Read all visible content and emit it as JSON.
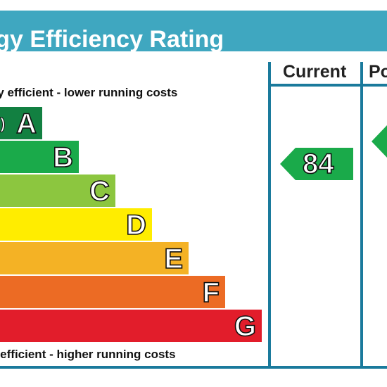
{
  "title": "rgy Efficiency Rating",
  "columns": {
    "current": "Current",
    "potential": "Po"
  },
  "captions": {
    "top": "gy efficient - lower running costs",
    "bottom": "y efficient - higher running costs"
  },
  "bands": [
    {
      "letter": "A",
      "range": "s)",
      "color": "#128041"
    },
    {
      "letter": "B",
      "color": "#1aaa4a"
    },
    {
      "letter": "C",
      "color": "#8cc63f"
    },
    {
      "letter": "D",
      "color": "#ffed00"
    },
    {
      "letter": "E",
      "color": "#f4b225"
    },
    {
      "letter": "F",
      "color": "#ec6b24"
    },
    {
      "letter": "G",
      "color": "#e21d2b"
    }
  ],
  "current_rating": {
    "value": "84",
    "band": "B",
    "color": "#1aaa4a"
  },
  "potential_rating": {
    "band": "A",
    "color": "#1aaa4a"
  }
}
